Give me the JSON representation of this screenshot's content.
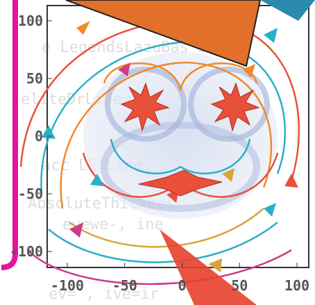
{
  "axes": {
    "x_ticks": [
      -100,
      -50,
      0,
      50,
      100
    ],
    "y_ticks": [
      100,
      50,
      0,
      -50,
      -100
    ]
  }
}
